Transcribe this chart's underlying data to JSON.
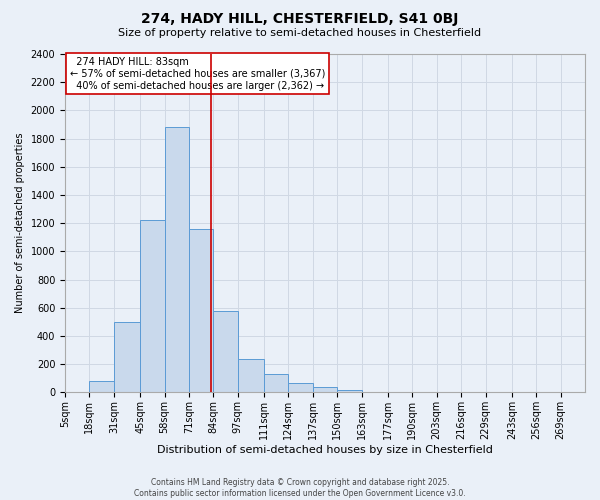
{
  "title1": "274, HADY HILL, CHESTERFIELD, S41 0BJ",
  "title2": "Size of property relative to semi-detached houses in Chesterfield",
  "xlabel": "Distribution of semi-detached houses by size in Chesterfield",
  "ylabel": "Number of semi-detached properties",
  "property_label": "274 HADY HILL: 83sqm",
  "pct_smaller": 57,
  "count_smaller": 3367,
  "pct_larger": 40,
  "count_larger": 2362,
  "bin_labels": [
    "5sqm",
    "18sqm",
    "31sqm",
    "45sqm",
    "58sqm",
    "71sqm",
    "84sqm",
    "97sqm",
    "111sqm",
    "124sqm",
    "137sqm",
    "150sqm",
    "163sqm",
    "177sqm",
    "190sqm",
    "203sqm",
    "216sqm",
    "229sqm",
    "243sqm",
    "256sqm",
    "269sqm"
  ],
  "bin_edges": [
    5,
    18,
    31,
    45,
    58,
    71,
    84,
    97,
    111,
    124,
    137,
    150,
    163,
    177,
    190,
    203,
    216,
    229,
    243,
    256,
    269,
    282
  ],
  "bar_heights": [
    0,
    80,
    500,
    1220,
    1880,
    1160,
    580,
    240,
    130,
    70,
    40,
    20,
    0,
    0,
    0,
    0,
    0,
    0,
    0,
    0,
    0
  ],
  "bar_color": "#c9d9ec",
  "bar_edge_color": "#5b9bd5",
  "grid_color": "#d0d8e4",
  "background_color": "#eaf0f8",
  "vline_color": "#cc0000",
  "vline_x": 83,
  "ylim": [
    0,
    2400
  ],
  "yticks": [
    0,
    200,
    400,
    600,
    800,
    1000,
    1200,
    1400,
    1600,
    1800,
    2000,
    2200,
    2400
  ],
  "footer": "Contains HM Land Registry data © Crown copyright and database right 2025.\nContains public sector information licensed under the Open Government Licence v3.0.",
  "annotation_box_color": "#ffffff",
  "annotation_box_edge": "#cc0000",
  "title1_fontsize": 10,
  "title2_fontsize": 8,
  "xlabel_fontsize": 8,
  "ylabel_fontsize": 7,
  "tick_fontsize": 7,
  "annot_fontsize": 7
}
